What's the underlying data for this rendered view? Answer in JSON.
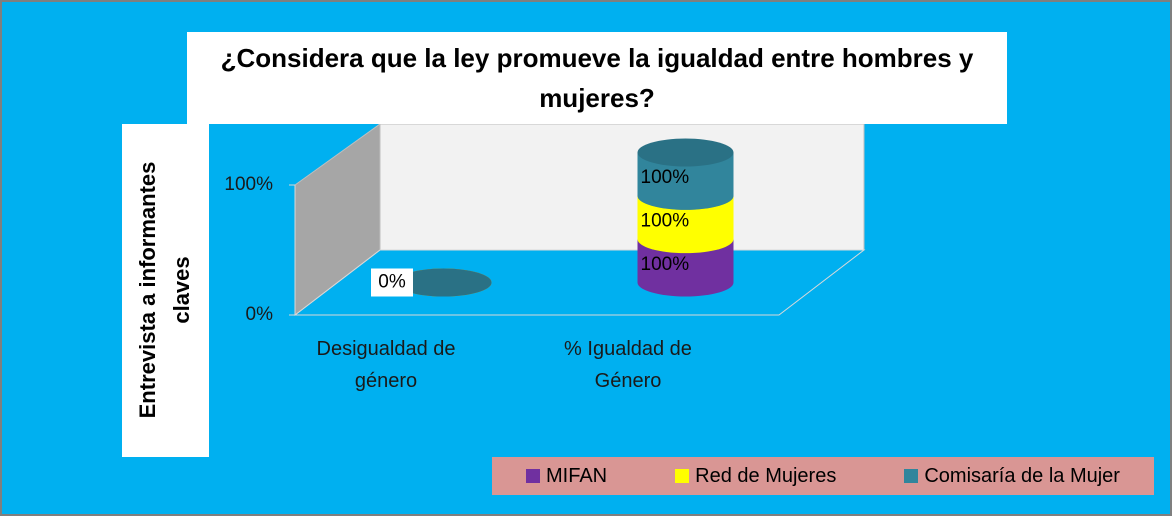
{
  "chart_data": {
    "type": "bar",
    "stacking": "percent",
    "title": "¿Considera que la ley promueve la igualdad entre hombres y mujeres?",
    "y_label": "Entrevista a informantes claves",
    "categories": [
      "Desigualdad de género",
      "% Igualdad de Género"
    ],
    "series": [
      {
        "name": "MIFAN",
        "color": "#7030a0",
        "values": [
          0,
          100
        ],
        "value_labels": [
          null,
          "100%"
        ]
      },
      {
        "name": "Red de Mujeres",
        "color": "#ffff00",
        "values": [
          0,
          100
        ],
        "value_labels": [
          null,
          "100%"
        ]
      },
      {
        "name": "Comisaría de la Mujer",
        "color": "#31859c",
        "values": [
          0,
          100
        ],
        "value_labels": [
          "0%",
          "100%"
        ]
      }
    ],
    "ylim": [
      0,
      100
    ],
    "yticks": [
      {
        "value": 0,
        "label": "0%"
      },
      {
        "value": 100,
        "label": "100%"
      }
    ],
    "legend": "bottom"
  }
}
